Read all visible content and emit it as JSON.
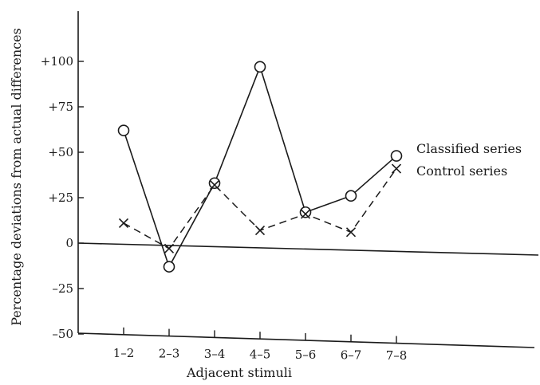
{
  "chart_data": {
    "type": "line",
    "title": "",
    "xlabel": "Adjacent stimuli",
    "ylabel": "Percentage deviations from actual differences",
    "categories": [
      "1–2",
      "2–3",
      "3–4",
      "4–5",
      "5–6",
      "6–7",
      "7–8"
    ],
    "yticks": [
      "+100",
      "+75",
      "+50",
      "+25",
      "0",
      "–25",
      "–50"
    ],
    "ytick_values": [
      100,
      75,
      50,
      25,
      0,
      -25,
      -50
    ],
    "ylim": [
      -50,
      125
    ],
    "grid": false,
    "legend": "labels beside line ends, right",
    "series": [
      {
        "name": "Classified series",
        "marker": "circle",
        "line": "solid",
        "values": [
          62,
          -13,
          33,
          97,
          17,
          26,
          48
        ]
      },
      {
        "name": "Control series",
        "marker": "x",
        "line": "dashed",
        "values": [
          11,
          -3,
          32,
          7,
          16,
          6,
          41
        ]
      }
    ]
  }
}
